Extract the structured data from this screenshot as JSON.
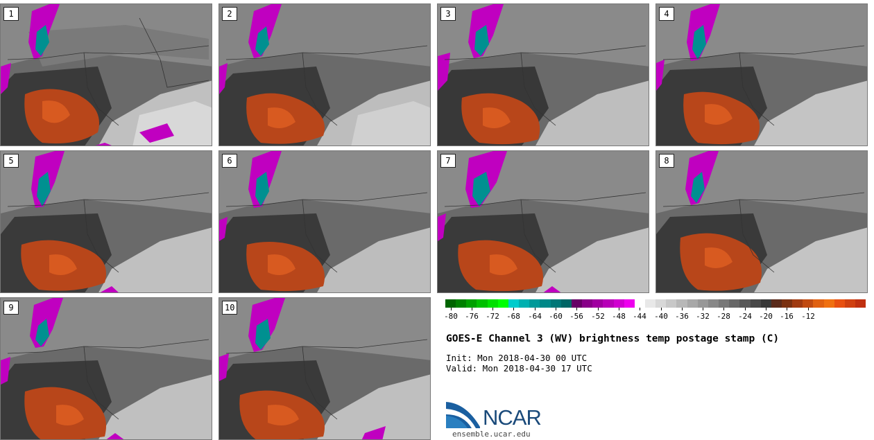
{
  "panels": [
    {
      "label": "1"
    },
    {
      "label": "2"
    },
    {
      "label": "3"
    },
    {
      "label": "4"
    },
    {
      "label": "5"
    },
    {
      "label": "6"
    },
    {
      "label": "7"
    },
    {
      "label": "8"
    },
    {
      "label": "9"
    },
    {
      "label": "10"
    }
  ],
  "colorbar": {
    "colors": [
      "#006400",
      "#008000",
      "#00a000",
      "#00c000",
      "#00e000",
      "#00ff00",
      "#00cccc",
      "#00b0b0",
      "#009999",
      "#008888",
      "#007777",
      "#006666",
      "#660066",
      "#880088",
      "#a000a0",
      "#b800b8",
      "#d000d0",
      "#ee00ee",
      "#ffffff",
      "#e8e8e8",
      "#d8d8d8",
      "#c8c8c8",
      "#b8b8b8",
      "#a8a8a8",
      "#989898",
      "#888888",
      "#787878",
      "#686868",
      "#585858",
      "#484848",
      "#383838",
      "#5a2a1a",
      "#7a3010",
      "#a03a10",
      "#c04a10",
      "#e06010",
      "#f07010",
      "#e85010",
      "#d04010",
      "#c03010"
    ],
    "tick_labels": [
      "-80",
      "-76",
      "-72",
      "-68",
      "-64",
      "-60",
      "-56",
      "-52",
      "-48",
      "-44",
      "-40",
      "-36",
      "-32",
      "-28",
      "-24",
      "-20",
      "-16",
      "-12"
    ]
  },
  "title": "GOES-E Channel 3 (WV) brightness temp postage stamp (C)",
  "init_line": "Init: Mon 2018-04-30 00 UTC",
  "valid_line": "Valid: Mon 2018-04-30 17 UTC",
  "logo": {
    "text": "NCAR",
    "url": "ensemble.ucar.edu"
  }
}
